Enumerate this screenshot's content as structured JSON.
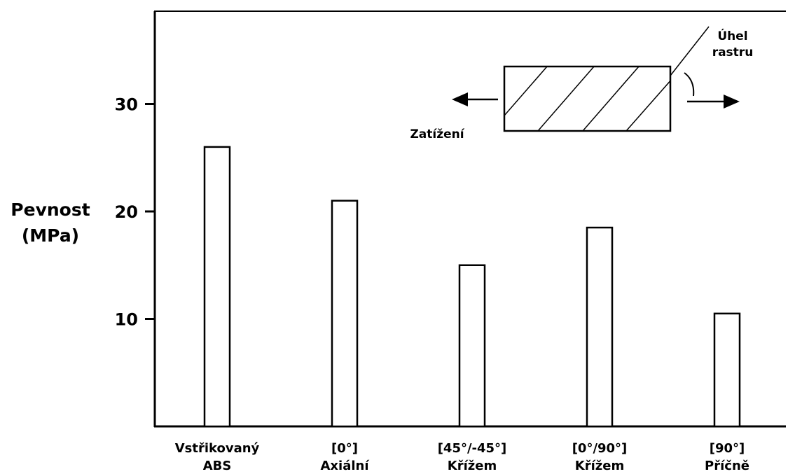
{
  "chart_data": {
    "type": "bar",
    "ylabel": [
      "Pevnost",
      "(MPa)"
    ],
    "ylim": [
      0,
      39
    ],
    "yticks": [
      10,
      20,
      30
    ],
    "categories": [
      [
        "Vstřikovaný",
        "ABS"
      ],
      [
        "[0°]",
        "Axiální"
      ],
      [
        "[45°/-45°]",
        "Křížem"
      ],
      [
        "[0°/90°]",
        "Křížem"
      ],
      [
        "[90°]",
        "Příčně"
      ]
    ],
    "values": [
      26,
      21,
      15,
      18.5,
      10.5
    ],
    "grid": false,
    "legend": "none"
  },
  "inset": {
    "load_label": "Zatížení",
    "raster_angle_label": [
      "Úhel",
      "rastru"
    ]
  },
  "colors": {
    "axis": "#000000",
    "bar_fill": "#ffffff",
    "bar_stroke": "#000000",
    "background": "#ffffff"
  }
}
